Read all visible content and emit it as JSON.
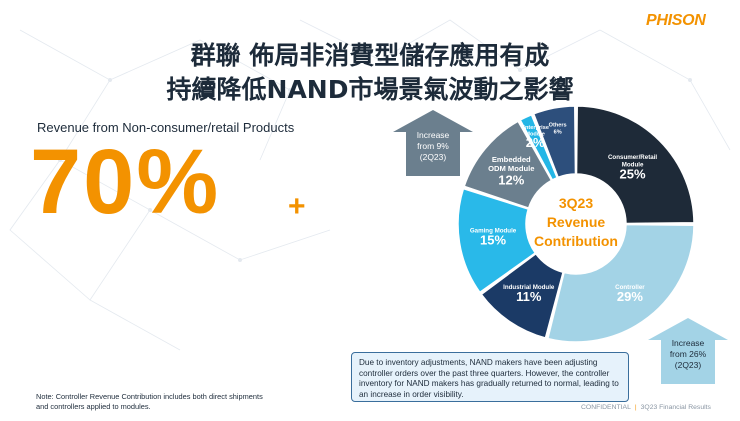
{
  "brand": {
    "logo": "PHISON",
    "accent_color": "#f39200"
  },
  "title": {
    "line1": "群聯 佈局非消費型儲存應用有成",
    "line2": "持續降低NAND市場景氣波動之影響"
  },
  "headline": {
    "label": "Revenue from Non-consumer/retail Products",
    "value": "70%",
    "suffix": "+"
  },
  "chart_data": {
    "type": "pie",
    "variant": "donut",
    "title": "3Q23 Revenue Contribution",
    "center_lines": [
      "3Q23",
      "Revenue",
      "Contribution"
    ],
    "slices": [
      {
        "label": "Consumer/Retail Module",
        "display": [
          "Consumer/Retail",
          "Module"
        ],
        "value": 25,
        "value_label": "25%",
        "color": "#1e2a38"
      },
      {
        "label": "Controller",
        "display": [
          "Controller"
        ],
        "value": 29,
        "value_label": "29%",
        "color": "#a3d3e6"
      },
      {
        "label": "Industrial Module",
        "display": [
          "Industrial Module"
        ],
        "value": 11,
        "value_label": "11%",
        "color": "#1b3a66"
      },
      {
        "label": "Gaming Module",
        "display": [
          "Gaming Module"
        ],
        "value": 15,
        "value_label": "15%",
        "color": "#29b9e9"
      },
      {
        "label": "Embedded ODM Module",
        "display": [
          "Embedded",
          "ODM Module"
        ],
        "value": 12,
        "value_label": "12%",
        "color": "#6b7f8e"
      },
      {
        "label": "Enterprise Module",
        "display": [
          "Enterprise",
          "Module"
        ],
        "value": 2,
        "value_label": "2%",
        "color": "#24b6e6"
      },
      {
        "label": "Others",
        "display": [
          "Others",
          "6%"
        ],
        "value": 6,
        "value_label": "",
        "color": "#2d4f7c"
      }
    ],
    "annotations": [
      {
        "target": "Embedded ODM Module",
        "lines": [
          "Increase",
          "from 9%",
          "(2Q23)"
        ]
      },
      {
        "target": "Controller",
        "lines": [
          "Increase",
          "from 26%",
          "(2Q23)"
        ]
      }
    ]
  },
  "callout": "Due to inventory adjustments, NAND makers have been adjusting controller orders over the past three quarters. However, the controller inventory for NAND makers has gradually returned to normal, leading to an increase in order visibility.",
  "note": "Note: Controller Revenue Contribution includes both direct shipments and controllers applied to modules.",
  "footer": {
    "left": "CONFIDENTIAL",
    "separator": "|",
    "right": "3Q23 Financial Results"
  }
}
